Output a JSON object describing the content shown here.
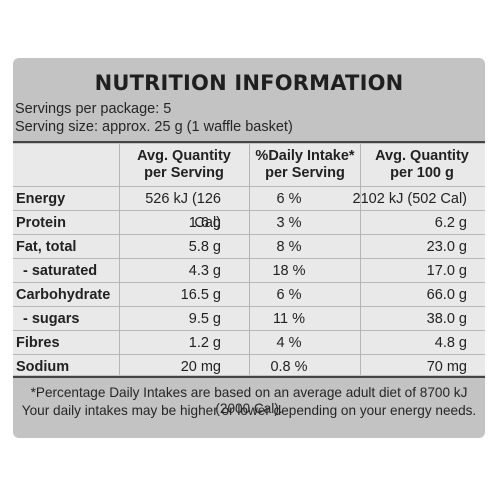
{
  "title": "NUTRITION INFORMATION",
  "servings_per_package": "Servings per package: 5",
  "serving_size": "Serving size: approx. 25 g (1 waffle basket)",
  "columns": {
    "col1": [
      "Avg. Quantity",
      "per Serving"
    ],
    "col2": [
      "%Daily Intake*",
      "per Serving"
    ],
    "col3": [
      "Avg. Quantity",
      "per 100 g"
    ]
  },
  "rows": [
    {
      "label": "Energy",
      "per_serving": "526 kJ (126 Cal)",
      "daily_intake": "6 %",
      "per_100g": "2102 kJ (502 Cal)"
    },
    {
      "label": "Protein",
      "per_serving": "1.6 g",
      "daily_intake": "3 %",
      "per_100g": "6.2 g"
    },
    {
      "label": "Fat, total",
      "per_serving": "5.8 g",
      "daily_intake": "8 %",
      "per_100g": "23.0 g"
    },
    {
      "label": "- saturated",
      "per_serving": "4.3 g",
      "daily_intake": "18 %",
      "per_100g": "17.0 g"
    },
    {
      "label": "Carbohydrate",
      "per_serving": "16.5 g",
      "daily_intake": "6 %",
      "per_100g": "66.0 g"
    },
    {
      "label": "- sugars",
      "per_serving": "9.5 g",
      "daily_intake": "11 %",
      "per_100g": "38.0 g"
    },
    {
      "label": "Fibres",
      "per_serving": "1.2 g",
      "daily_intake": "4 %",
      "per_100g": "4.8 g"
    },
    {
      "label": "Sodium",
      "per_serving": "20 mg",
      "daily_intake": "0.8 %",
      "per_100g": "70 mg"
    }
  ],
  "footnote": [
    "*Percentage Daily Intakes are based on an average adult diet of 8700 kJ (2000 Cal).",
    "Your daily intakes may be higher or lower depending on your energy needs."
  ]
}
